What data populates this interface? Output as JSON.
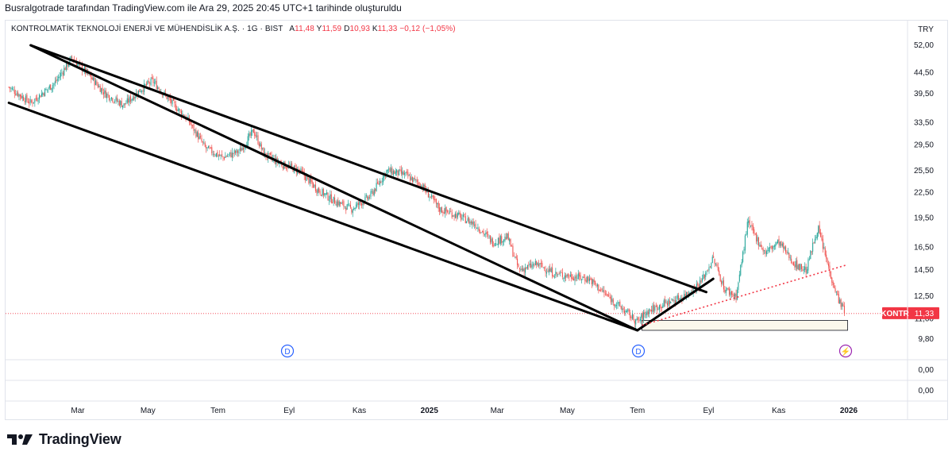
{
  "header": {
    "caption": "Busralgotrade tarafından TradingView.com ile Ara 29, 2025 20:45 UTC+1 tarihinde oluşturuldu"
  },
  "legend": {
    "symbol": "KONTROLMATİK TEKNOLOJİ ENERJİ VE MÜHENDİSLİK A.Ş. · 1G · BIST",
    "open_label": "A",
    "open": "11,48",
    "high_label": "Y",
    "high": "11,59",
    "low_label": "D",
    "low": "10,93",
    "close_label": "K",
    "close": "11,33",
    "change": "−0,12 (−1,05%)"
  },
  "currency": "TRY",
  "price_tag": {
    "ticker": "KONTR",
    "price": "11,33",
    "color": "#f23645"
  },
  "colors": {
    "up": "#26a69a",
    "down": "#ef5350",
    "trendline": "#000000",
    "dotted": "#f23645",
    "grid": "#e0e3eb",
    "marker": "#2962ff",
    "flash": "#9c27b0"
  },
  "markers": [
    "D",
    "D",
    "⚡"
  ],
  "logo_text": "TradingView",
  "chart_data": {
    "type": "candlestick",
    "yscale": "log",
    "ylim": [
      9.0,
      56.0
    ],
    "y_ticks": [
      "52,00",
      "44,50",
      "39,50",
      "33,50",
      "29,50",
      "25,50",
      "22,50",
      "19,50",
      "16,50",
      "14,50",
      "12,50",
      "11,00",
      "9,80"
    ],
    "y_tick_values": [
      52.0,
      44.5,
      39.5,
      33.5,
      29.5,
      25.5,
      22.5,
      19.5,
      16.5,
      14.5,
      12.5,
      11.0,
      9.8
    ],
    "x_ticks": [
      "Mar",
      "May",
      "Tem",
      "Eyl",
      "Kas",
      "2025",
      "Mar",
      "May",
      "Tem",
      "Eyl",
      "Kas",
      "2026"
    ],
    "x_tick_dates": [
      "2024-03-01",
      "2024-05-01",
      "2024-07-01",
      "2024-09-01",
      "2024-11-01",
      "2025-01-01",
      "2025-03-01",
      "2025-05-01",
      "2025-07-01",
      "2025-09-01",
      "2025-11-01",
      "2026-01-01"
    ],
    "close_path": [
      [
        "2024-01-01",
        41.0
      ],
      [
        "2024-01-20",
        37.5
      ],
      [
        "2024-02-10",
        42.0
      ],
      [
        "2024-02-25",
        48.5
      ],
      [
        "2024-03-10",
        44.0
      ],
      [
        "2024-03-25",
        39.5
      ],
      [
        "2024-04-10",
        37.0
      ],
      [
        "2024-04-25",
        40.5
      ],
      [
        "2024-05-05",
        42.5
      ],
      [
        "2024-05-20",
        38.0
      ],
      [
        "2024-06-05",
        34.0
      ],
      [
        "2024-06-20",
        29.0
      ],
      [
        "2024-07-05",
        27.5
      ],
      [
        "2024-07-20",
        28.5
      ],
      [
        "2024-08-01",
        32.0
      ],
      [
        "2024-08-10",
        28.0
      ],
      [
        "2024-08-25",
        26.5
      ],
      [
        "2024-09-10",
        25.5
      ],
      [
        "2024-09-25",
        23.0
      ],
      [
        "2024-10-10",
        21.5
      ],
      [
        "2024-10-25",
        20.5
      ],
      [
        "2024-11-10",
        22.0
      ],
      [
        "2024-11-25",
        25.5
      ],
      [
        "2024-12-10",
        25.0
      ],
      [
        "2024-12-25",
        23.5
      ],
      [
        "2025-01-10",
        20.5
      ],
      [
        "2025-01-25",
        19.8
      ],
      [
        "2025-02-10",
        18.8
      ],
      [
        "2025-02-25",
        17.0
      ],
      [
        "2025-03-10",
        17.5
      ],
      [
        "2025-03-20",
        14.5
      ],
      [
        "2025-04-05",
        15.0
      ],
      [
        "2025-04-20",
        14.2
      ],
      [
        "2025-05-05",
        14.0
      ],
      [
        "2025-05-20",
        13.8
      ],
      [
        "2025-06-05",
        12.5
      ],
      [
        "2025-06-20",
        11.5
      ],
      [
        "2025-07-01",
        10.8
      ],
      [
        "2025-07-10",
        11.5
      ],
      [
        "2025-07-25",
        12.0
      ],
      [
        "2025-08-10",
        12.5
      ],
      [
        "2025-08-25",
        13.5
      ],
      [
        "2025-09-05",
        15.5
      ],
      [
        "2025-09-15",
        13.0
      ],
      [
        "2025-09-25",
        12.5
      ],
      [
        "2025-10-05",
        19.0
      ],
      [
        "2025-10-20",
        16.0
      ],
      [
        "2025-11-01",
        17.0
      ],
      [
        "2025-11-15",
        15.0
      ],
      [
        "2025-11-25",
        14.5
      ],
      [
        "2025-12-05",
        18.5
      ],
      [
        "2025-12-15",
        14.5
      ],
      [
        "2025-12-22",
        12.5
      ],
      [
        "2025-12-29",
        11.33
      ]
    ],
    "trendlines": [
      {
        "style": "solid",
        "from": [
          "2024-01-20",
          52.0
        ],
        "to": [
          "2025-07-01",
          10.3
        ]
      },
      {
        "style": "solid",
        "from": [
          "2024-01-01",
          37.5
        ],
        "to": [
          "2025-07-01",
          10.3
        ]
      },
      {
        "style": "solid",
        "from": [
          "2024-01-20",
          52.0
        ],
        "to": [
          "2025-08-30",
          12.8
        ]
      },
      {
        "style": "solid",
        "from": [
          "2025-07-01",
          10.3
        ],
        "to": [
          "2025-09-05",
          13.8
        ]
      },
      {
        "style": "dotted",
        "from": [
          "2025-07-05",
          10.6
        ],
        "to": [
          "2025-12-29",
          14.9
        ]
      }
    ],
    "support_zone": {
      "from": "2025-07-05",
      "to": "2025-12-31",
      "low": 10.3,
      "high": 10.9
    },
    "last_price_line": 11.33
  }
}
